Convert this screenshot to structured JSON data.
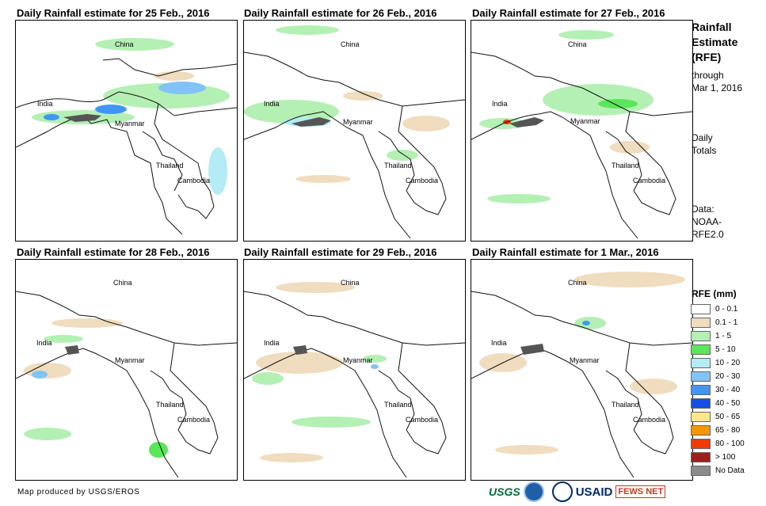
{
  "panels": [
    {
      "title": "Daily Rainfall estimate for 25 Feb., 2016"
    },
    {
      "title": "Daily Rainfall estimate for 26 Feb., 2016"
    },
    {
      "title": "Daily Rainfall estimate for 27 Feb., 2016"
    },
    {
      "title": "Daily Rainfall estimate for 28 Feb., 2016"
    },
    {
      "title": "Daily Rainfall estimate for 29 Feb., 2016"
    },
    {
      "title": "Daily Rainfall estimate for 1 Mar., 2016"
    }
  ],
  "map_labels": {
    "china": "China",
    "india": "India",
    "myanmar": "Myanmar",
    "thailand": "Thailand",
    "cambodia": "Cambodia"
  },
  "sidebar": {
    "title_line1": "Rainfall",
    "title_line2": "Estimate",
    "title_line3": "(RFE)",
    "through": "through",
    "date": "Mar 1, 2016",
    "daily": "Daily",
    "totals": "Totals",
    "data_label": "Data:",
    "source1": "NOAA-",
    "source2": "RFE2.0"
  },
  "legend": {
    "title": "RFE (mm)",
    "items": [
      {
        "label": "0 - 0.1",
        "color": "#ffffff"
      },
      {
        "label": "0.1 - 1",
        "color": "#f0dcbe"
      },
      {
        "label": "1 - 5",
        "color": "#b4f0b4"
      },
      {
        "label": "5 - 10",
        "color": "#5ae65a"
      },
      {
        "label": "10 - 20",
        "color": "#b4ebf5"
      },
      {
        "label": "20 - 30",
        "color": "#82c3f5"
      },
      {
        "label": "30 - 40",
        "color": "#4196f5"
      },
      {
        "label": "40 - 50",
        "color": "#1450e6"
      },
      {
        "label": "50 - 65",
        "color": "#fae68c"
      },
      {
        "label": "65 - 80",
        "color": "#fa9600"
      },
      {
        "label": "80 - 100",
        "color": "#f03c00"
      },
      {
        "label": "> 100",
        "color": "#a01e1e"
      },
      {
        "label": "No Data",
        "color": "#8c8c8c"
      }
    ]
  },
  "footer": {
    "credit": "Map produced by USGS/EROS",
    "logo_usgs": "USGS",
    "logo_usaid": "USAID",
    "logo_fews": "FEWS NET"
  }
}
